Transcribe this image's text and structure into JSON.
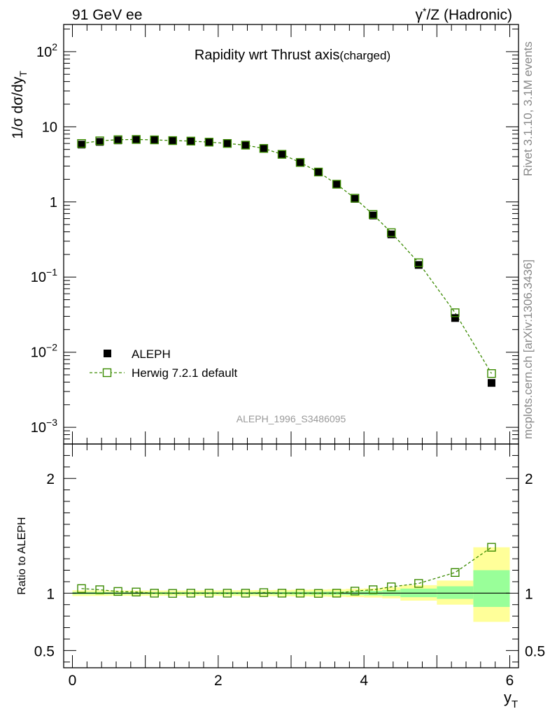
{
  "header": {
    "left": "91 GeV ee",
    "right_sup": "*",
    "right_gamma": "γ",
    "right_rest": "/Z (Hadronic)"
  },
  "side_texts": {
    "rivet": "Rivet 3.1.10,  3.1M events",
    "mcplots": "mcplots.cern.ch [arXiv:1306.3436]"
  },
  "watermark": "ALEPH_1996_S3486095",
  "chart_data": [
    {
      "type": "scatter",
      "panel": "main",
      "title": "Rapidity wrt Thrust axis",
      "title_suffix": "(charged)",
      "ylabel": "1/σ dσ/dy",
      "ylabel_sub": "T",
      "yscale": "log",
      "ylim": [
        0.0006,
        230
      ],
      "xlim": [
        -0.12,
        6.12
      ],
      "y_ticks": [
        {
          "v": 100,
          "base": "10",
          "exp": "2"
        },
        {
          "v": 10,
          "base": "10",
          "exp": ""
        },
        {
          "v": 1,
          "base": "1",
          "exp": ""
        },
        {
          "v": 0.1,
          "base": "10",
          "exp": "−1"
        },
        {
          "v": 0.01,
          "base": "10",
          "exp": "−2"
        },
        {
          "v": 0.001,
          "base": "10",
          "exp": "−3"
        }
      ],
      "x": [
        0.125,
        0.375,
        0.625,
        0.875,
        1.125,
        1.375,
        1.625,
        1.875,
        2.125,
        2.375,
        2.625,
        2.875,
        3.125,
        3.375,
        3.625,
        3.875,
        4.125,
        4.375,
        4.75,
        5.25,
        5.75
      ],
      "series": [
        {
          "name": "ALEPH",
          "marker": "filled-square",
          "color": "#000000",
          "values": [
            5.8,
            6.3,
            6.6,
            6.7,
            6.7,
            6.55,
            6.45,
            6.25,
            6.0,
            5.7,
            5.1,
            4.3,
            3.35,
            2.5,
            1.72,
            1.1,
            0.66,
            0.37,
            0.145,
            0.0285,
            0.0039
          ]
        },
        {
          "name": "Herwig 7.2.1 default",
          "marker": "open-square",
          "color": "#3a8a00",
          "line": "dashed",
          "values": [
            6.0,
            6.5,
            6.73,
            6.78,
            6.7,
            6.55,
            6.45,
            6.25,
            6.0,
            5.7,
            5.15,
            4.3,
            3.35,
            2.5,
            1.72,
            1.12,
            0.68,
            0.39,
            0.155,
            0.0335,
            0.0052
          ]
        }
      ],
      "legend": [
        {
          "label": "ALEPH",
          "marker": "filled-square"
        },
        {
          "label": "Herwig 7.2.1 default",
          "marker": "open-square"
        }
      ]
    },
    {
      "type": "scatter",
      "panel": "ratio",
      "ylabel": "Ratio to ALEPH",
      "xlabel": "y",
      "xlabel_sub": "T",
      "ylim": [
        0.35,
        2.3
      ],
      "xlim": [
        -0.12,
        6.12
      ],
      "x_ticks": [
        0,
        2,
        4,
        6
      ],
      "y_ticks": [
        0.5,
        1,
        2
      ],
      "y_tick_labels": [
        "0.5",
        "1",
        "2"
      ],
      "x_tick_labels": [
        "0",
        "2",
        "4",
        "6"
      ],
      "bins": [
        [
          0,
          0.25
        ],
        [
          0.25,
          0.5
        ],
        [
          0.5,
          0.75
        ],
        [
          0.75,
          1
        ],
        [
          1,
          1.25
        ],
        [
          1.25,
          1.5
        ],
        [
          1.5,
          1.75
        ],
        [
          1.75,
          2
        ],
        [
          2,
          2.25
        ],
        [
          2.25,
          2.5
        ],
        [
          2.5,
          2.75
        ],
        [
          2.75,
          3
        ],
        [
          3,
          3.25
        ],
        [
          3.25,
          3.5
        ],
        [
          3.5,
          3.75
        ],
        [
          3.75,
          4
        ],
        [
          4,
          4.25
        ],
        [
          4.25,
          4.5
        ],
        [
          4.5,
          5
        ],
        [
          5,
          5.5
        ],
        [
          5.5,
          6
        ]
      ],
      "band_yellow": [
        [
          0.975,
          1.025
        ],
        [
          0.976,
          1.024
        ],
        [
          0.977,
          1.023
        ],
        [
          0.977,
          1.023
        ],
        [
          0.977,
          1.023
        ],
        [
          0.977,
          1.023
        ],
        [
          0.977,
          1.023
        ],
        [
          0.977,
          1.024
        ],
        [
          0.976,
          1.025
        ],
        [
          0.975,
          1.026
        ],
        [
          0.974,
          1.027
        ],
        [
          0.973,
          1.028
        ],
        [
          0.972,
          1.03
        ],
        [
          0.97,
          1.032
        ],
        [
          0.968,
          1.034
        ],
        [
          0.965,
          1.038
        ],
        [
          0.962,
          1.042
        ],
        [
          0.955,
          1.052
        ],
        [
          0.935,
          1.07
        ],
        [
          0.9,
          1.11
        ],
        [
          0.75,
          1.4
        ]
      ],
      "band_green": [
        [
          0.99,
          1.01
        ],
        [
          0.99,
          1.01
        ],
        [
          0.991,
          1.009
        ],
        [
          0.991,
          1.009
        ],
        [
          0.991,
          1.009
        ],
        [
          0.991,
          1.009
        ],
        [
          0.991,
          1.009
        ],
        [
          0.991,
          1.009
        ],
        [
          0.99,
          1.01
        ],
        [
          0.99,
          1.01
        ],
        [
          0.99,
          1.011
        ],
        [
          0.989,
          1.011
        ],
        [
          0.988,
          1.012
        ],
        [
          0.987,
          1.013
        ],
        [
          0.986,
          1.014
        ],
        [
          0.984,
          1.016
        ],
        [
          0.981,
          1.02
        ],
        [
          0.975,
          1.027
        ],
        [
          0.965,
          1.04
        ],
        [
          0.95,
          1.06
        ],
        [
          0.88,
          1.2
        ]
      ],
      "reference": 1,
      "values": [
        1.04,
        1.03,
        1.015,
        1.01,
        1.0,
        0.998,
        1.0,
        1.0,
        1.0,
        1.0,
        1.005,
        1.0,
        1.0,
        0.998,
        1.0,
        1.018,
        1.03,
        1.055,
        1.085,
        1.18,
        1.4
      ]
    }
  ]
}
